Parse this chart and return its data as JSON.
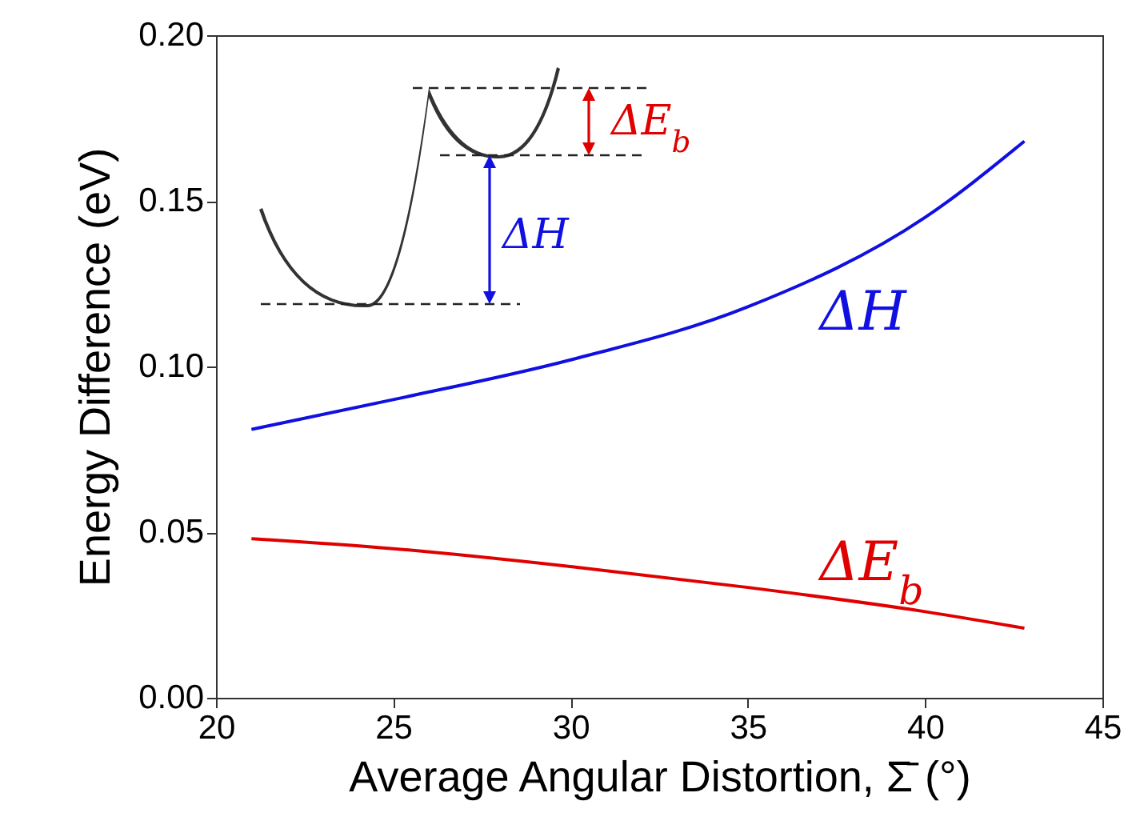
{
  "chart_data": {
    "type": "line",
    "xlabel": "Average Angular Distortion, Σ̄ (°)",
    "ylabel": "Energy Difference (eV)",
    "xlim": [
      20,
      45
    ],
    "xticks": [
      20,
      25,
      30,
      35,
      40,
      45
    ],
    "ylim": [
      0,
      0.2
    ],
    "yticks": [
      {
        "value": 0,
        "label": "0.00"
      },
      {
        "value": 0.05,
        "label": "0.05"
      },
      {
        "value": 0.1,
        "label": "0.10"
      },
      {
        "value": 0.15,
        "label": "0.15"
      },
      {
        "value": 0.2,
        "label": "0.20"
      }
    ],
    "x": [
      21,
      25,
      30,
      35,
      40,
      42.8
    ],
    "series": [
      {
        "name": "ΔH",
        "color": "#1010e0",
        "values": [
          0.081,
          0.09,
          0.102,
          0.118,
          0.145,
          0.168
        ]
      },
      {
        "name": "ΔE$_{b}$",
        "color": "#e00000",
        "values": [
          0.048,
          0.045,
          0.0396,
          0.0333,
          0.026,
          0.021
        ]
      }
    ],
    "annotations": [
      "ΔH",
      "ΔE$_{b}$"
    ],
    "grid": false,
    "line_style": "solid",
    "marker": "none"
  }
}
